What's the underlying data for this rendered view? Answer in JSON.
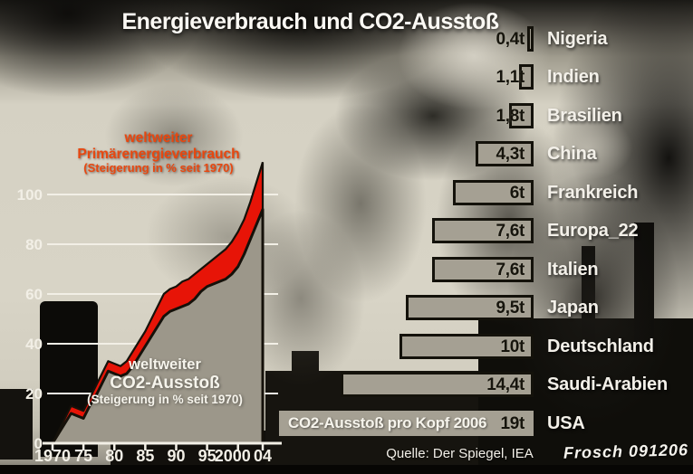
{
  "title": "Energieverbrauch und CO2-Ausstoß",
  "source": "Quelle: Der Spiegel, IEA",
  "signature": "Frosch 091206",
  "colors": {
    "energy_area_red": "#e71407",
    "energy_label_orange": "#e8470f",
    "co2_area_gray": "#9c978a",
    "area_outline_black": "#15110a",
    "bar_fill": "#a5a093",
    "bar_border": "#14120b",
    "bar_value_text": "#17150d",
    "axis_white": "#f2efe6",
    "label_white": "#f3f0e9"
  },
  "chart_data": [
    {
      "type": "area",
      "description": "Steigerung in % seit 1970, weltweit, 1970-2004",
      "ylim": [
        0,
        115
      ],
      "yticks": [
        0,
        20,
        40,
        60,
        80,
        100
      ],
      "xticks": [
        {
          "year": 1970,
          "label": "1970"
        },
        {
          "year": 1975,
          "label": "75"
        },
        {
          "year": 1980,
          "label": "80"
        },
        {
          "year": 1985,
          "label": "85"
        },
        {
          "year": 1990,
          "label": "90"
        },
        {
          "year": 1995,
          "label": "95"
        },
        {
          "year": 2000,
          "label": "2000"
        },
        {
          "year": 2004,
          "label": "04"
        }
      ],
      "grid": true,
      "series": [
        {
          "name": "weltweiter Primärenergieverbrauch (Steigerung in % seit 1970)",
          "color": "#e71407",
          "x": [
            1970,
            1971,
            1972,
            1973,
            1974,
            1975,
            1976,
            1977,
            1978,
            1979,
            1980,
            1981,
            1982,
            1983,
            1984,
            1985,
            1986,
            1987,
            1988,
            1989,
            1990,
            1991,
            1992,
            1993,
            1994,
            1995,
            1996,
            1997,
            1998,
            1999,
            2000,
            2001,
            2002,
            2003,
            2004
          ],
          "values": [
            0,
            5,
            10,
            15,
            14,
            13,
            18,
            23,
            28,
            33,
            32,
            31,
            33,
            37,
            41,
            45,
            50,
            55,
            60,
            62,
            63,
            65,
            66,
            68,
            70,
            72,
            74,
            76,
            78,
            81,
            85,
            90,
            97,
            105,
            113
          ]
        },
        {
          "name": "weltweiter CO2-Ausstoß (Steigerung in % seit 1970)",
          "color": "#9c978a",
          "x": [
            1970,
            1971,
            1972,
            1973,
            1974,
            1975,
            1976,
            1977,
            1978,
            1979,
            1980,
            1981,
            1982,
            1983,
            1984,
            1985,
            1986,
            1987,
            1988,
            1989,
            1990,
            1991,
            1992,
            1993,
            1994,
            1995,
            1996,
            1997,
            1998,
            1999,
            2000,
            2001,
            2002,
            2003,
            2004
          ],
          "values": [
            0,
            4,
            8,
            12,
            11,
            10,
            15,
            19,
            24,
            29,
            28,
            27,
            28,
            31,
            35,
            39,
            43,
            47,
            51,
            53,
            54,
            55,
            56,
            58,
            61,
            63,
            64,
            65,
            66,
            68,
            71,
            76,
            82,
            88,
            94
          ]
        }
      ],
      "annotations": {
        "energy_label": [
          "weltweiter",
          "Primärenergieverbrauch",
          "(Steigerung in % seit 1970)"
        ],
        "co2_label": [
          "weltweiter",
          "CO2-Ausstoß",
          "(Steigerung in % seit 1970)"
        ]
      }
    },
    {
      "type": "bar",
      "title": "CO2-Ausstoß pro Kopf 2006",
      "unit": "t",
      "rows": [
        {
          "country": "Nigeria",
          "value": 0.4,
          "value_label": "0,4t"
        },
        {
          "country": "Indien",
          "value": 1.1,
          "value_label": "1,1t"
        },
        {
          "country": "Brasilien",
          "value": 1.8,
          "value_label": "1,8t"
        },
        {
          "country": "China",
          "value": 4.3,
          "value_label": "4,3t"
        },
        {
          "country": "Frankreich",
          "value": 6,
          "value_label": "6t"
        },
        {
          "country": "Europa_22",
          "value": 7.6,
          "value_label": "7,6t"
        },
        {
          "country": "Italien",
          "value": 7.6,
          "value_label": "7,6t"
        },
        {
          "country": "Japan",
          "value": 9.5,
          "value_label": "9,5t"
        },
        {
          "country": "Deutschland",
          "value": 10,
          "value_label": "10t"
        },
        {
          "country": "Saudi-Arabien",
          "value": 14.4,
          "value_label": "14,4t"
        },
        {
          "country": "USA",
          "value": 19,
          "value_label": "19t",
          "bordered": false,
          "has_note": true
        }
      ]
    }
  ]
}
